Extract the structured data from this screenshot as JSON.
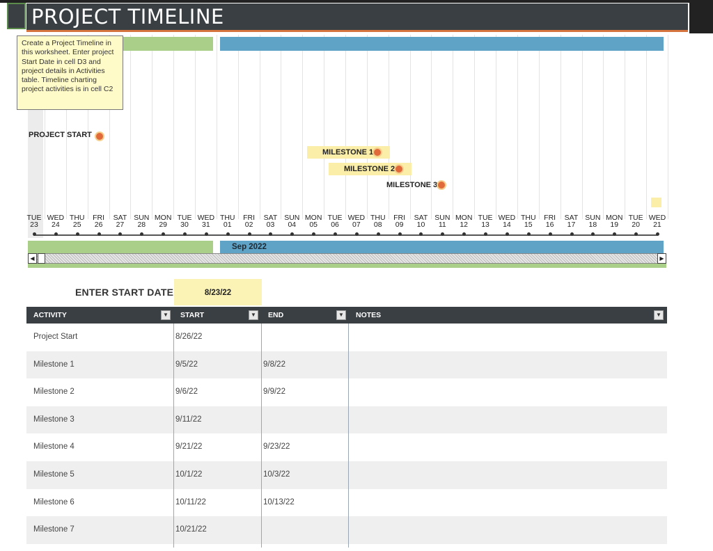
{
  "header": {
    "title": "PROJECT TIMELINE"
  },
  "tooltip": {
    "text": "Create a Project Timeline in this worksheet. Enter project Start Date in cell D3 and project details in Activities table. Timeline charting project activities is in cell C2"
  },
  "timeline": {
    "month_bar_label": "Sep 2022",
    "milestones": [
      {
        "label": "PROJECT START",
        "highlighted": false
      },
      {
        "label": "MILESTONE 1",
        "highlighted": true
      },
      {
        "label": "MILESTONE 2",
        "highlighted": true
      },
      {
        "label": "MILESTONE 3",
        "highlighted": false
      }
    ],
    "days": [
      {
        "dow": "TUE",
        "d": "23"
      },
      {
        "dow": "WED",
        "d": "24"
      },
      {
        "dow": "THU",
        "d": "25"
      },
      {
        "dow": "FRI",
        "d": "26"
      },
      {
        "dow": "SAT",
        "d": "27"
      },
      {
        "dow": "SUN",
        "d": "28"
      },
      {
        "dow": "MON",
        "d": "29"
      },
      {
        "dow": "TUE",
        "d": "30"
      },
      {
        "dow": "WED",
        "d": "31"
      },
      {
        "dow": "THU",
        "d": "01"
      },
      {
        "dow": "FRI",
        "d": "02"
      },
      {
        "dow": "SAT",
        "d": "03"
      },
      {
        "dow": "SUN",
        "d": "04"
      },
      {
        "dow": "MON",
        "d": "05"
      },
      {
        "dow": "TUE",
        "d": "06"
      },
      {
        "dow": "WED",
        "d": "07"
      },
      {
        "dow": "THU",
        "d": "08"
      },
      {
        "dow": "FRI",
        "d": "09"
      },
      {
        "dow": "SAT",
        "d": "10"
      },
      {
        "dow": "SUN",
        "d": "11"
      },
      {
        "dow": "MON",
        "d": "12"
      },
      {
        "dow": "TUE",
        "d": "13"
      },
      {
        "dow": "WED",
        "d": "14"
      },
      {
        "dow": "THU",
        "d": "15"
      },
      {
        "dow": "FRI",
        "d": "16"
      },
      {
        "dow": "SAT",
        "d": "17"
      },
      {
        "dow": "SUN",
        "d": "18"
      },
      {
        "dow": "MON",
        "d": "19"
      },
      {
        "dow": "TUE",
        "d": "20"
      },
      {
        "dow": "WED",
        "d": "21"
      }
    ],
    "colors": {
      "august": "#a9cf88",
      "september": "#5fa3c6",
      "milestone_dot": "#e06a3a",
      "highlight": "#fbeea9"
    }
  },
  "start_date": {
    "label": "ENTER START DATE:",
    "value": "8/23/22"
  },
  "table": {
    "columns": [
      "ACTIVITY",
      "START",
      "END",
      "NOTES"
    ],
    "rows": [
      {
        "activity": "Project Start",
        "start": "8/26/22",
        "end": "",
        "notes": ""
      },
      {
        "activity": "Milestone 1",
        "start": "9/5/22",
        "end": "9/8/22",
        "notes": ""
      },
      {
        "activity": "Milestone 2",
        "start": "9/6/22",
        "end": "9/9/22",
        "notes": ""
      },
      {
        "activity": "Milestone 3",
        "start": "9/11/22",
        "end": "",
        "notes": ""
      },
      {
        "activity": "Milestone 4",
        "start": "9/21/22",
        "end": "9/23/22",
        "notes": ""
      },
      {
        "activity": "Milestone 5",
        "start": "10/1/22",
        "end": "10/3/22",
        "notes": ""
      },
      {
        "activity": "Milestone 6",
        "start": "10/11/22",
        "end": "10/13/22",
        "notes": ""
      },
      {
        "activity": "Milestone 7",
        "start": "10/21/22",
        "end": "",
        "notes": ""
      }
    ]
  }
}
